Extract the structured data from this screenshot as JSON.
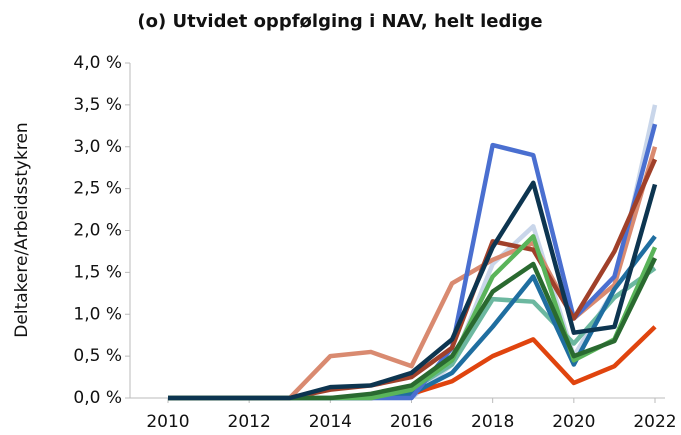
{
  "chart_data": {
    "type": "line",
    "title": "(o) Utvidet oppfølging i NAV, helt ledige",
    "y_label": "Deltakere/Arbeidsstykren",
    "x": [
      2010,
      2011,
      2012,
      2013,
      2014,
      2015,
      2016,
      2017,
      2018,
      2019,
      2020,
      2021,
      2022
    ],
    "xlim": [
      2010,
      2022
    ],
    "xticks": [
      2010,
      2012,
      2014,
      2016,
      2018,
      2020,
      2022
    ],
    "ylim": [
      0,
      4
    ],
    "yticks": [
      {
        "value": 0,
        "label": "0,0 %"
      },
      {
        "value": 0.5,
        "label": "0,5 %"
      },
      {
        "value": 1,
        "label": "1,0 %"
      },
      {
        "value": 1.5,
        "label": "1,5 %"
      },
      {
        "value": 2,
        "label": "2,0 %"
      },
      {
        "value": 2.5,
        "label": "2,5 %"
      },
      {
        "value": 3,
        "label": "3,0 %"
      },
      {
        "value": 3.5,
        "label": "3,5 %"
      },
      {
        "value": 4,
        "label": "4,0 %"
      }
    ],
    "grid": false,
    "series": [
      {
        "color": "#c9d6ea",
        "values": [
          0,
          0,
          0,
          0,
          0,
          0,
          0,
          0.4,
          1.6,
          2.05,
          0.5,
          1.3,
          3.5
        ]
      },
      {
        "color": "#d98a70",
        "values": [
          0,
          0,
          0,
          0,
          0.5,
          0.55,
          0.38,
          1.37,
          1.65,
          1.85,
          0.95,
          1.35,
          3.0
        ]
      },
      {
        "color": "#e0440e",
        "values": [
          0,
          0,
          0,
          0,
          0,
          0,
          0.05,
          0.2,
          0.5,
          0.7,
          0.18,
          0.38,
          0.85
        ]
      },
      {
        "color": "#6cb8a0",
        "values": [
          0,
          0,
          0,
          0,
          0,
          0,
          0.1,
          0.4,
          1.18,
          1.15,
          0.65,
          1.2,
          1.55
        ]
      },
      {
        "color": "#1f6ea0",
        "values": [
          0,
          0,
          0,
          0,
          0,
          0,
          0.05,
          0.3,
          0.85,
          1.45,
          0.4,
          1.3,
          1.93
        ]
      },
      {
        "color": "#4a6fd0",
        "values": [
          0,
          0,
          0,
          0,
          0,
          0,
          0,
          0.6,
          3.02,
          2.9,
          0.95,
          1.45,
          3.27
        ]
      },
      {
        "color": "#a0402a",
        "values": [
          0,
          0,
          0,
          0,
          0.1,
          0.15,
          0.25,
          0.6,
          1.87,
          1.77,
          0.95,
          1.75,
          2.85
        ]
      },
      {
        "color": "#5ab45a",
        "values": [
          0,
          0,
          0,
          0,
          0,
          0,
          0.1,
          0.45,
          1.45,
          1.93,
          0.45,
          0.7,
          1.8
        ]
      },
      {
        "color": "#2a6a30",
        "values": [
          0,
          0,
          0,
          0,
          0,
          0.05,
          0.15,
          0.5,
          1.27,
          1.6,
          0.5,
          0.68,
          1.67
        ]
      },
      {
        "color": "#0d3550",
        "values": [
          0,
          0,
          0,
          0,
          0.13,
          0.15,
          0.3,
          0.7,
          1.8,
          2.57,
          0.78,
          0.85,
          2.55
        ]
      }
    ]
  }
}
